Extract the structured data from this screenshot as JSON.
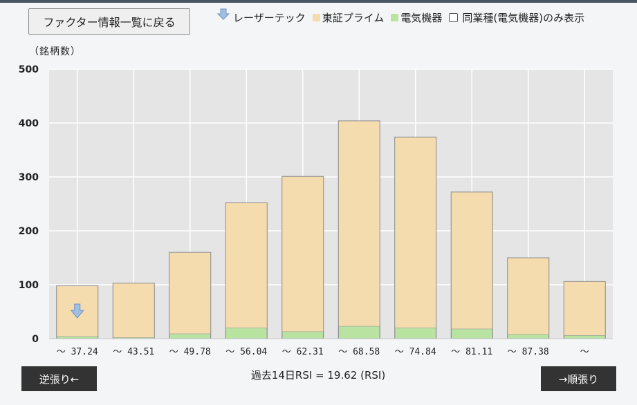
{
  "back_button": {
    "label": "ファクター情報一覧に戻る"
  },
  "legend": {
    "target": {
      "label": "レーザーテック",
      "icon": "down-arrow-marker",
      "color": "#8fb3da"
    },
    "market": {
      "label": "東証プライム",
      "color": "#f5dcae"
    },
    "sector": {
      "label": "電気機器",
      "color": "#b9e3a1"
    },
    "peer_filter": {
      "label": "同業種(電気機器)のみ表示",
      "checked": false
    }
  },
  "y_unit_label": "（銘柄数）",
  "rsi_label": "過去14日RSI = 19.62 (RSI)",
  "nav": {
    "prev_label": "逆張り←",
    "next_label": "→順張り"
  },
  "chart_data": {
    "type": "bar",
    "stacked": true,
    "categories": [
      "～ 37.24",
      "～ 43.51",
      "～ 49.78",
      "～ 56.04",
      "～ 62.31",
      "～ 68.58",
      "～ 74.84",
      "～ 81.11",
      "～ 87.38",
      "～"
    ],
    "series": [
      {
        "name": "東証プライム",
        "color": "#f5dcae",
        "values": [
          98,
          103,
          160,
          252,
          301,
          404,
          374,
          272,
          150,
          106
        ]
      },
      {
        "name": "電気機器",
        "color": "#b9e3a1",
        "values": [
          4,
          2,
          9,
          20,
          13,
          23,
          20,
          18,
          8,
          6
        ]
      }
    ],
    "target_marker": {
      "name": "レーザーテック",
      "category_index": 0
    },
    "yticks": [
      0,
      100,
      200,
      300,
      400,
      500
    ],
    "ylim": [
      0,
      500
    ],
    "grid": true
  }
}
